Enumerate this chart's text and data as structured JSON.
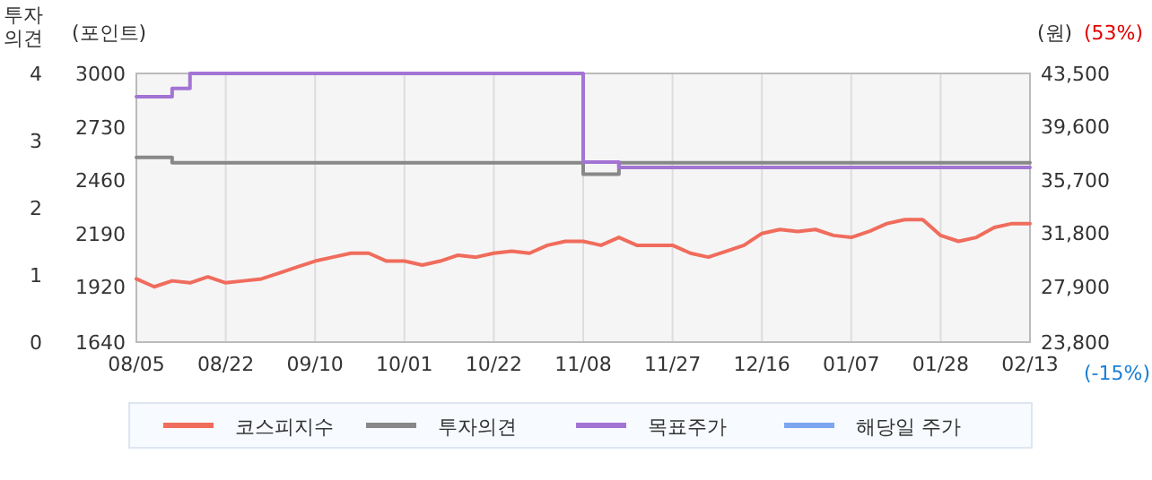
{
  "chart_data": {
    "type": "line",
    "ylabel": "(포인트)",
    "y2label": "(원)",
    "y3label": "투자\n의견",
    "annotations": [
      "(53%)",
      "(-15%)"
    ],
    "categories": [
      "08/05",
      null,
      null,
      null,
      null,
      "08/22",
      null,
      null,
      null,
      null,
      "09/10",
      null,
      null,
      null,
      null,
      "10/01",
      null,
      null,
      null,
      null,
      "10/22",
      null,
      null,
      null,
      null,
      "11/08",
      null,
      null,
      null,
      null,
      "11/27",
      null,
      null,
      null,
      null,
      "12/16",
      null,
      null,
      null,
      null,
      "01/07",
      null,
      null,
      null,
      null,
      "01/28",
      null,
      null,
      null,
      null,
      "02/13"
    ],
    "ylim": [
      1640,
      3000
    ],
    "yticks": [
      1640,
      1920,
      2190,
      2460,
      2730,
      3000
    ],
    "y2lim": [
      23800,
      43500
    ],
    "y2ticks": [
      {
        "value": 23800,
        "label": "23,800"
      },
      {
        "value": 27900,
        "label": "27,900"
      },
      {
        "value": 31800,
        "label": "31,800"
      },
      {
        "value": 35700,
        "label": "35,700"
      },
      {
        "value": 39600,
        "label": "39,600"
      },
      {
        "value": 43500,
        "label": "43,500"
      }
    ],
    "y3lim": [
      0,
      4
    ],
    "y3ticks": [
      0,
      1,
      2,
      3,
      4
    ],
    "grid": "x",
    "legend": "bottom",
    "marker": "none",
    "line_style": "solid",
    "series": [
      {
        "name": "코스피지수",
        "color": "#f06c5c",
        "values": [
          1960,
          1920,
          1950,
          1940,
          1970,
          1940,
          1950,
          1960,
          1990,
          2020,
          2050,
          2070,
          2090,
          2090,
          2050,
          2050,
          2030,
          2050,
          2080,
          2070,
          2090,
          2100,
          2090,
          2130,
          2150,
          2150,
          2130,
          2170,
          2130,
          2130,
          2130,
          2090,
          2070,
          2100,
          2130,
          2190,
          2210,
          2200,
          2210,
          2180,
          2170,
          2200,
          2240,
          2260,
          2260,
          2180,
          2150,
          2170,
          2220,
          2240,
          2240
        ]
      },
      {
        "name": "투자의견",
        "color": "#888888",
        "type": "step",
        "axis": "y3",
        "values": [
          2.75,
          2.75,
          2.67,
          2.67,
          2.67,
          2.67,
          2.67,
          2.67,
          2.67,
          2.67,
          2.67,
          2.67,
          2.67,
          2.67,
          2.67,
          2.67,
          2.67,
          2.67,
          2.67,
          2.67,
          2.67,
          2.67,
          2.67,
          2.67,
          2.67,
          2.5,
          2.5,
          2.67,
          2.67,
          2.67,
          2.67,
          2.67,
          2.67,
          2.67,
          2.67,
          2.67,
          2.67,
          2.67,
          2.67,
          2.67,
          2.67,
          2.67,
          2.67,
          2.67,
          2.67,
          2.67,
          2.67,
          2.67,
          2.67,
          2.67,
          2.67
        ]
      },
      {
        "name": "목표주가",
        "color": "#a374d4",
        "type": "step",
        "axis": "y2",
        "values": [
          41800,
          41800,
          42400,
          43500,
          43500,
          43500,
          43500,
          43500,
          43500,
          43500,
          43500,
          43500,
          43500,
          43500,
          43500,
          43500,
          43500,
          43500,
          43500,
          43500,
          43500,
          43500,
          43500,
          43500,
          43500,
          37000,
          37000,
          36600,
          36600,
          36600,
          36600,
          36600,
          36600,
          36600,
          36600,
          36600,
          36600,
          36600,
          36600,
          36600,
          36600,
          36600,
          36600,
          36600,
          36600,
          36600,
          36600,
          36600,
          36600,
          36600,
          36600
        ]
      },
      {
        "name": "해당일 주가",
        "color": "#7ea6f0",
        "type": "line",
        "axis": "y2",
        "values": [
          null,
          null,
          null,
          null,
          null,
          null,
          null,
          null,
          null,
          null,
          null,
          null,
          null,
          null,
          null,
          null,
          null,
          null,
          null,
          null,
          null,
          null,
          null,
          null,
          null,
          null,
          null,
          null,
          null,
          null,
          null,
          null,
          null,
          null,
          null,
          null,
          null,
          null,
          null,
          null,
          null,
          null,
          null,
          null,
          null,
          null,
          null,
          null,
          null,
          null,
          null
        ]
      }
    ]
  }
}
